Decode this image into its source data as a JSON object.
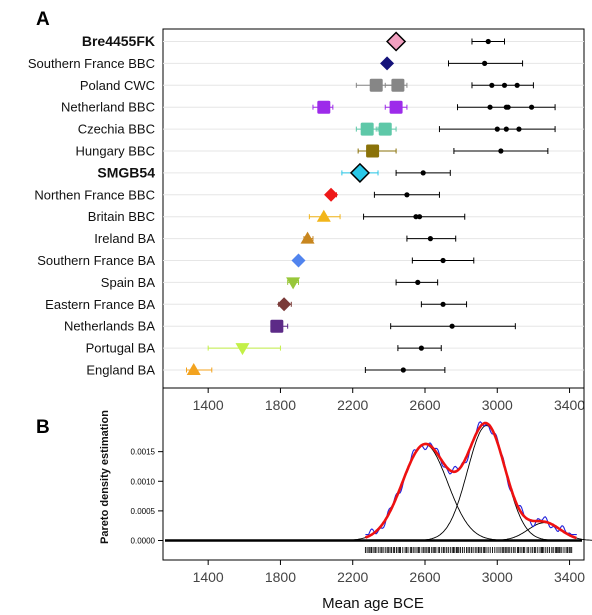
{
  "panels": {
    "a_label": "A",
    "b_label": "B"
  },
  "chart_data": [
    {
      "panel": "A",
      "type": "scatter",
      "xlabel": "",
      "xlim": [
        1150,
        3480
      ],
      "xticks": [
        "1400",
        "1800",
        "2200",
        "2600",
        "3000",
        "3400"
      ],
      "xtick_values": [
        1400,
        1800,
        2200,
        2600,
        3000,
        3400
      ],
      "grid": true,
      "rows": [
        {
          "label": "Bre4455FK",
          "bold": true,
          "color": "#f2a0c0",
          "shape": "diamond",
          "points": [
            2440
          ],
          "err": [
            [
              2410,
              2470
            ]
          ],
          "outline": true,
          "radio_mean": [
            2950
          ],
          "radio_range": [
            [
              2860,
              3040
            ]
          ]
        },
        {
          "label": "Southern France BBC",
          "bold": false,
          "color": "#15137a",
          "shape": "diamond",
          "points": [
            2390
          ],
          "err": [
            [
              2370,
              2410
            ]
          ],
          "radio_mean": [
            2930
          ],
          "radio_range": [
            [
              2730,
              3140
            ]
          ]
        },
        {
          "label": "Poland CWC",
          "bold": false,
          "color": "#868686",
          "shape": "square",
          "points": [
            2330,
            2450
          ],
          "err": [
            [
              2220,
              2420
            ],
            [
              2380,
              2500
            ]
          ],
          "radio_mean": [
            2970,
            3040,
            3110
          ],
          "radio_range": [
            [
              2860,
              3200
            ]
          ]
        },
        {
          "label": "Netherland BBC",
          "bold": false,
          "color": "#9d2bea",
          "shape": "square",
          "points": [
            2040,
            2440
          ],
          "err": [
            [
              1980,
              2090
            ],
            [
              2380,
              2500
            ]
          ],
          "radio_mean": [
            2960,
            3050,
            3060,
            3190
          ],
          "radio_range": [
            [
              2780,
              3320
            ]
          ]
        },
        {
          "label": "Czechia BBC",
          "bold": false,
          "color": "#5ec8a8",
          "shape": "square",
          "points": [
            2280,
            2380
          ],
          "err": [
            [
              2220,
              2340
            ],
            [
              2330,
              2440
            ]
          ],
          "radio_mean": [
            3000,
            3050,
            3120
          ],
          "radio_range": [
            [
              2680,
              3320
            ]
          ]
        },
        {
          "label": "Hungary BBC",
          "bold": false,
          "color": "#8a7209",
          "shape": "square",
          "points": [
            2310
          ],
          "err": [
            [
              2230,
              2440
            ]
          ],
          "radio_mean": [
            3020
          ],
          "radio_range": [
            [
              2760,
              3280
            ]
          ]
        },
        {
          "label": "SMGB54",
          "bold": true,
          "color": "#29c8e8",
          "shape": "diamond",
          "points": [
            2240
          ],
          "err": [
            [
              2140,
              2340
            ]
          ],
          "outline": true,
          "radio_mean": [
            2590
          ],
          "radio_range": [
            [
              2440,
              2740
            ]
          ]
        },
        {
          "label": "Northen France BBC",
          "bold": false,
          "color": "#ee1818",
          "shape": "diamond",
          "points": [
            2080
          ],
          "err": [
            [
              2060,
              2110
            ]
          ],
          "radio_mean": [
            2500
          ],
          "radio_range": [
            [
              2320,
              2680
            ]
          ]
        },
        {
          "label": "Britain BBC",
          "bold": false,
          "color": "#f2b51a",
          "shape": "triangle-up",
          "points": [
            2040
          ],
          "err": [
            [
              1960,
              2130
            ]
          ],
          "radio_mean": [
            2550,
            2570
          ],
          "radio_range": [
            [
              2260,
              2820
            ]
          ]
        },
        {
          "label": "Ireland BA",
          "bold": false,
          "color": "#c8861f",
          "shape": "triangle-up",
          "points": [
            1950
          ],
          "err": [
            [
              1930,
              1980
            ]
          ],
          "radio_mean": [
            2630
          ],
          "radio_range": [
            [
              2500,
              2770
            ]
          ]
        },
        {
          "label": "Southern France BA",
          "bold": false,
          "color": "#5184ee",
          "shape": "diamond",
          "points": [
            1900
          ],
          "err": [
            [
              1890,
              1920
            ]
          ],
          "radio_mean": [
            2700
          ],
          "radio_range": [
            [
              2530,
              2870
            ]
          ]
        },
        {
          "label": "Spain BA",
          "bold": false,
          "color": "#98c73a",
          "shape": "triangle-down",
          "points": [
            1870
          ],
          "err": [
            [
              1840,
              1900
            ]
          ],
          "radio_mean": [
            2560
          ],
          "radio_range": [
            [
              2440,
              2670
            ]
          ]
        },
        {
          "label": "Eastern France BA",
          "bold": false,
          "color": "#7a3a38",
          "shape": "diamond",
          "points": [
            1820
          ],
          "err": [
            [
              1790,
              1860
            ]
          ],
          "radio_mean": [
            2700
          ],
          "radio_range": [
            [
              2580,
              2830
            ]
          ]
        },
        {
          "label": "Netherlands BA",
          "bold": false,
          "color": "#5c2a87",
          "shape": "square",
          "points": [
            1780
          ],
          "err": [
            [
              1750,
              1840
            ]
          ],
          "radio_mean": [
            2750
          ],
          "radio_range": [
            [
              2410,
              3100
            ]
          ]
        },
        {
          "label": "Portugal BA",
          "bold": false,
          "color": "#c3f047",
          "shape": "triangle-down",
          "points": [
            1590
          ],
          "err": [
            [
              1400,
              1800
            ]
          ],
          "radio_mean": [
            2580
          ],
          "radio_range": [
            [
              2450,
              2690
            ]
          ]
        },
        {
          "label": "England BA",
          "bold": false,
          "color": "#f3a31f",
          "shape": "triangle-up",
          "points": [
            1320
          ],
          "err": [
            [
              1280,
              1420
            ]
          ],
          "radio_mean": [
            2480
          ],
          "radio_range": [
            [
              2270,
              2710
            ]
          ]
        }
      ]
    },
    {
      "panel": "B",
      "type": "line",
      "xlabel": "Mean age BCE",
      "ylabel": "Pareto density estimation",
      "xlim": [
        1150,
        3480
      ],
      "ylim": [
        -5e-05,
        0.00195
      ],
      "xticks": [
        "1400",
        "1800",
        "2200",
        "2600",
        "3000",
        "3400"
      ],
      "xtick_values": [
        1400,
        1800,
        2200,
        2600,
        3000,
        3400
      ],
      "yticks": [
        "0.0000",
        "0.0005",
        "0.0010",
        "0.0015"
      ],
      "ytick_values": [
        0,
        0.0005,
        0.001,
        0.0015
      ],
      "components": [
        {
          "mean": 2600,
          "sd": 125,
          "height": 0.00162
        },
        {
          "mean": 2940,
          "sd": 105,
          "height": 0.00194
        },
        {
          "mean": 3260,
          "sd": 90,
          "height": 0.0003
        }
      ],
      "density_range": [
        2270,
        3440
      ],
      "rug_range": [
        2270,
        3420
      ],
      "colors": {
        "mixture": "#ee1111",
        "pde": "#2222dd",
        "component": "#000000"
      }
    }
  ]
}
